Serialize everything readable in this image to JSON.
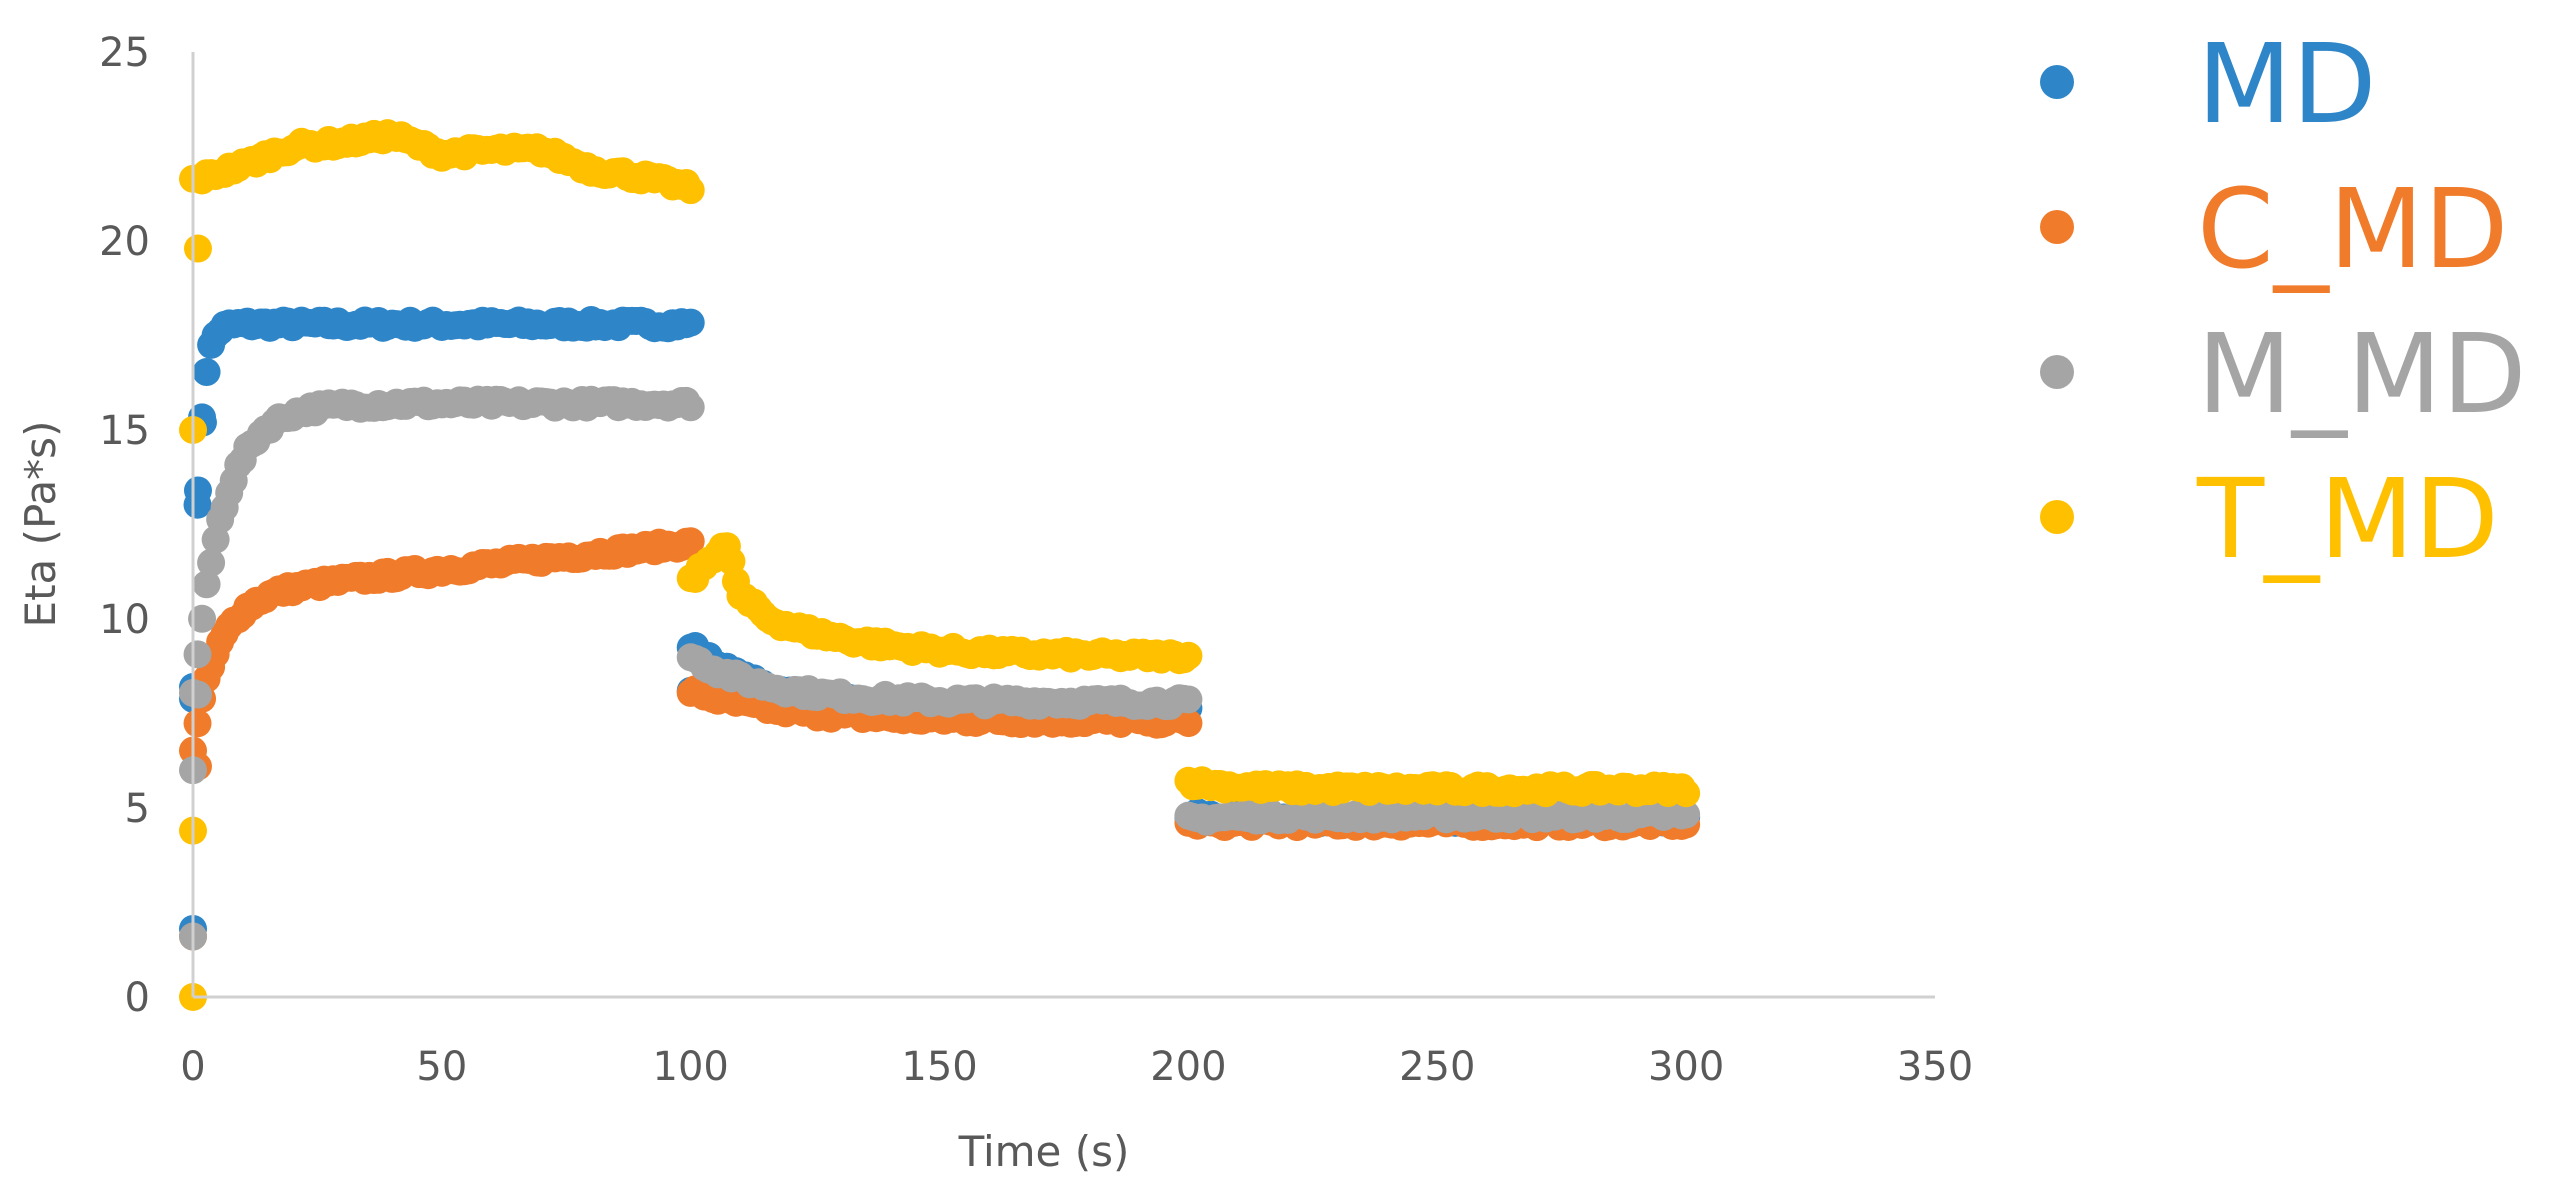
{
  "chart_data": {
    "type": "scatter",
    "xlabel": "Time (s)",
    "ylabel": "Eta (Pa*s)",
    "xlim": [
      0,
      350
    ],
    "ylim": [
      0,
      25
    ],
    "x_ticks": [
      "0",
      "50",
      "100",
      "150",
      "200",
      "250",
      "300",
      "350"
    ],
    "y_ticks": [
      "0",
      "5",
      "10",
      "15",
      "20",
      "25"
    ],
    "grid": false,
    "legend_position": "right",
    "series": [
      {
        "name": "MD",
        "color": "#2E86C9",
        "segments": [
          {
            "x0": 0,
            "x1": 100,
            "y0": 8.0,
            "y1": 17.8,
            "tau": 1.3,
            "drift": 0.0
          },
          {
            "x0": 100,
            "x1": 200,
            "y0": 9.3,
            "y1": 7.6,
            "tau": 15,
            "drift": 0.0
          },
          {
            "x0": 200,
            "x1": 300,
            "y0": 4.8,
            "y1": 4.7,
            "tau": 10,
            "drift": 0.0
          }
        ],
        "extra_points": [
          {
            "x": 0,
            "y": 1.8
          },
          {
            "x": 0,
            "y": 8.2
          },
          {
            "x": 1,
            "y": 13.4
          },
          {
            "x": 2,
            "y": 15.2
          },
          {
            "x": 100,
            "y": 8.1
          }
        ]
      },
      {
        "name": "C_MD",
        "color": "#F07B2A",
        "segments": [
          {
            "x0": 0,
            "x1": 100,
            "y0": 8.0,
            "y1": 12.0,
            "tau": 5,
            "drift": 1.4
          },
          {
            "x0": 100,
            "x1": 200,
            "y0": 8.1,
            "y1": 7.3,
            "tau": 18,
            "drift": 0.0
          },
          {
            "x0": 200,
            "x1": 300,
            "y0": 4.6,
            "y1": 4.6,
            "tau": 10,
            "drift": 0.0
          }
        ],
        "extra_points": [
          {
            "x": 0,
            "y": 1.6
          },
          {
            "x": 1,
            "y": 6.1
          },
          {
            "x": 1,
            "y": 8.0
          }
        ]
      },
      {
        "name": "M_MD",
        "color": "#A5A5A5",
        "segments": [
          {
            "x0": 0,
            "x1": 100,
            "y0": 8.0,
            "y1": 15.7,
            "tau": 6,
            "drift": 0.0
          },
          {
            "x0": 100,
            "x1": 200,
            "y0": 9.0,
            "y1": 7.8,
            "tau": 15,
            "drift": 0.0
          },
          {
            "x0": 200,
            "x1": 300,
            "y0": 4.7,
            "y1": 4.8,
            "tau": 10,
            "drift": 0.0
          }
        ],
        "extra_points": [
          {
            "x": 0,
            "y": 1.6
          },
          {
            "x": 0,
            "y": 6.0
          },
          {
            "x": 1,
            "y": 8.0
          }
        ]
      },
      {
        "name": "T_MD",
        "color": "#FFC000",
        "segments": [
          {
            "x0": 0,
            "x1": 100,
            "y0": 21.5,
            "y1": 21.5,
            "tau": 10,
            "drift": 0.0
          },
          {
            "x0": 100,
            "x1": 200,
            "y0": 11.2,
            "y1": 9.0,
            "tau": 20,
            "drift": 0.0
          },
          {
            "x0": 200,
            "x1": 300,
            "y0": 5.7,
            "y1": 5.5,
            "tau": 10,
            "drift": 0.0
          }
        ],
        "hump": [
          {
            "x": 0,
            "y": 21.6
          },
          {
            "x": 10,
            "y": 22.0
          },
          {
            "x": 20,
            "y": 22.5
          },
          {
            "x": 30,
            "y": 22.6
          },
          {
            "x": 40,
            "y": 22.8
          },
          {
            "x": 50,
            "y": 22.3
          },
          {
            "x": 60,
            "y": 22.4
          },
          {
            "x": 70,
            "y": 22.4
          },
          {
            "x": 80,
            "y": 21.9
          },
          {
            "x": 90,
            "y": 21.7
          },
          {
            "x": 100,
            "y": 21.4
          }
        ],
        "bump": [
          {
            "x": 100,
            "y": 11.0
          },
          {
            "x": 104,
            "y": 11.6
          },
          {
            "x": 107,
            "y": 12.0
          },
          {
            "x": 110,
            "y": 10.6
          },
          {
            "x": 115,
            "y": 10.1
          }
        ],
        "extra_points": [
          {
            "x": 0,
            "y": 0.0
          },
          {
            "x": 0,
            "y": 4.4
          },
          {
            "x": 0,
            "y": 15.0
          },
          {
            "x": 1,
            "y": 19.8
          }
        ]
      }
    ]
  }
}
